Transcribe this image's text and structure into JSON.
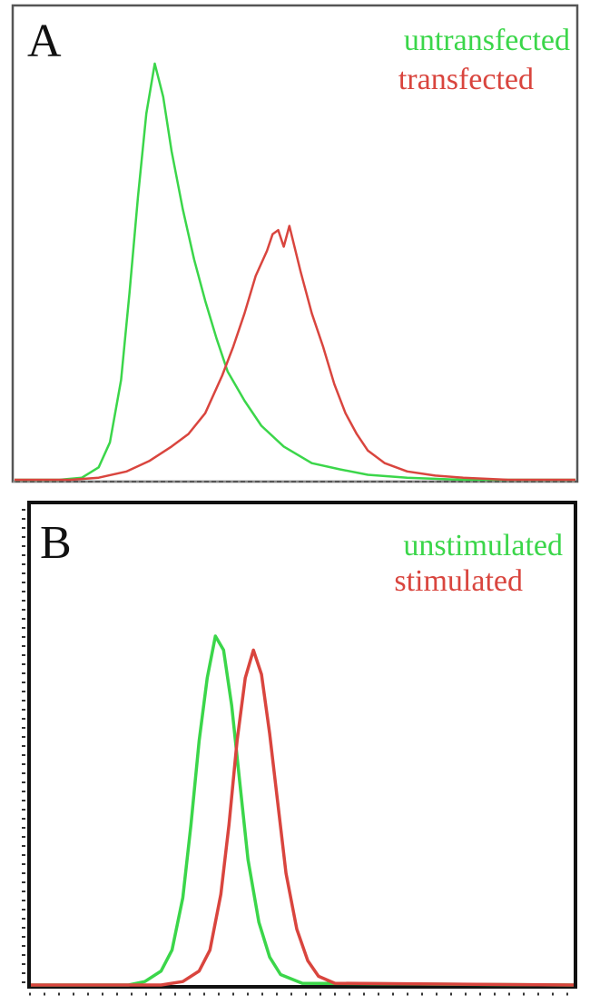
{
  "colors": {
    "green": "#3bd64a",
    "red": "#d9453e",
    "frame": "#000000",
    "axis_dots": "#888888"
  },
  "chart_data": [
    {
      "type": "line",
      "panel_label": "A",
      "xlim": [
        0,
        100
      ],
      "ylim": [
        0,
        100
      ],
      "series": [
        {
          "name": "untransfected",
          "color": "#3bd64a",
          "x": [
            0,
            8,
            12,
            15,
            17,
            19,
            20.5,
            22,
            23.5,
            25,
            26.5,
            28,
            30,
            32,
            34,
            36,
            38,
            41,
            44,
            48,
            53,
            58,
            63,
            70,
            80,
            100
          ],
          "y": [
            0,
            0,
            0.5,
            3,
            9,
            24,
            45,
            68,
            88,
            100,
            92,
            79,
            65,
            53,
            43,
            34,
            26,
            19,
            13,
            8,
            4,
            2.5,
            1.2,
            0.5,
            0,
            0
          ]
        },
        {
          "name": "transfected",
          "color": "#d9453e",
          "x": [
            0,
            10,
            15,
            20,
            24,
            28,
            31,
            34,
            37,
            39,
            41,
            43,
            45,
            46,
            47,
            48,
            49,
            51,
            53,
            55,
            57,
            59,
            61,
            63,
            66,
            70,
            75,
            80,
            88,
            100
          ],
          "y": [
            0,
            0,
            0.5,
            2,
            4.5,
            8,
            11,
            16,
            25,
            32,
            40,
            49,
            55,
            59,
            60,
            56,
            61,
            50,
            40,
            32,
            23,
            16,
            11,
            7,
            4,
            2,
            1,
            0.5,
            0,
            0
          ]
        }
      ]
    },
    {
      "type": "line",
      "panel_label": "B",
      "xlim": [
        0,
        100
      ],
      "ylim": [
        0,
        100
      ],
      "series": [
        {
          "name": "unstimulated",
          "color": "#3bd64a",
          "x": [
            0,
            18,
            21,
            24,
            26,
            28,
            29.5,
            31,
            32.5,
            34,
            35.5,
            37,
            38.5,
            40,
            42,
            44,
            46,
            50,
            100
          ],
          "y": [
            0,
            0,
            1,
            4,
            10,
            25,
            46,
            70,
            88,
            100,
            96,
            80,
            58,
            36,
            18,
            8,
            3,
            0.5,
            0
          ]
        },
        {
          "name": "stimulated",
          "color": "#d9453e",
          "x": [
            0,
            24,
            28,
            31,
            33,
            35,
            36.5,
            38,
            39.5,
            41,
            42.5,
            44,
            45.5,
            47,
            49,
            51,
            53,
            56,
            100
          ],
          "y": [
            0,
            0,
            1,
            4,
            10,
            26,
            46,
            70,
            88,
            96,
            89,
            72,
            52,
            32,
            16,
            7,
            2.5,
            0.5,
            0
          ]
        }
      ]
    }
  ]
}
